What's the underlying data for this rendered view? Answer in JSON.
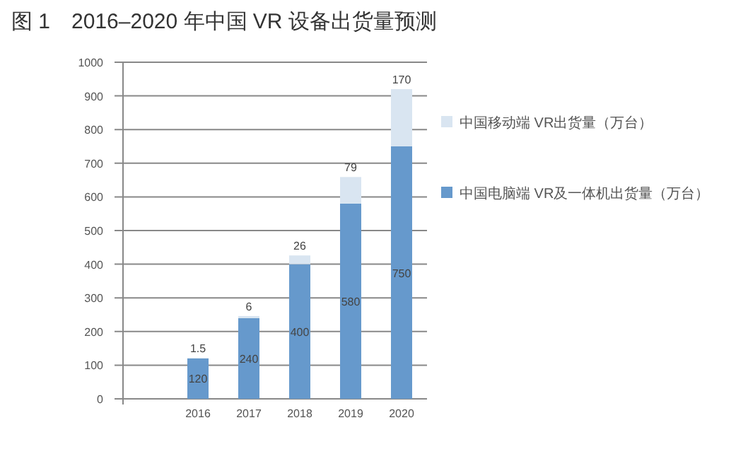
{
  "chart_data": {
    "type": "bar",
    "title": "图 1　2016–2020 年中国 VR 设备出货量预测",
    "categories": [
      "2016",
      "2017",
      "2018",
      "2019",
      "2020"
    ],
    "stacked": true,
    "data_labels": true,
    "grid": "y",
    "legend": "right",
    "ylim": [
      0,
      1000
    ],
    "yticks": [
      0,
      100,
      200,
      300,
      400,
      500,
      600,
      700,
      800,
      900,
      1000
    ],
    "series": [
      {
        "name": "中国电脑端 VR及一体机出货量（万台）",
        "color": "#6699cc",
        "values": [
          120,
          240,
          400,
          580,
          750
        ]
      },
      {
        "name": "中国移动端 VR出货量（万台）",
        "color": "#d9e5f1",
        "values": [
          1.5,
          6,
          26,
          79,
          170
        ]
      }
    ]
  }
}
